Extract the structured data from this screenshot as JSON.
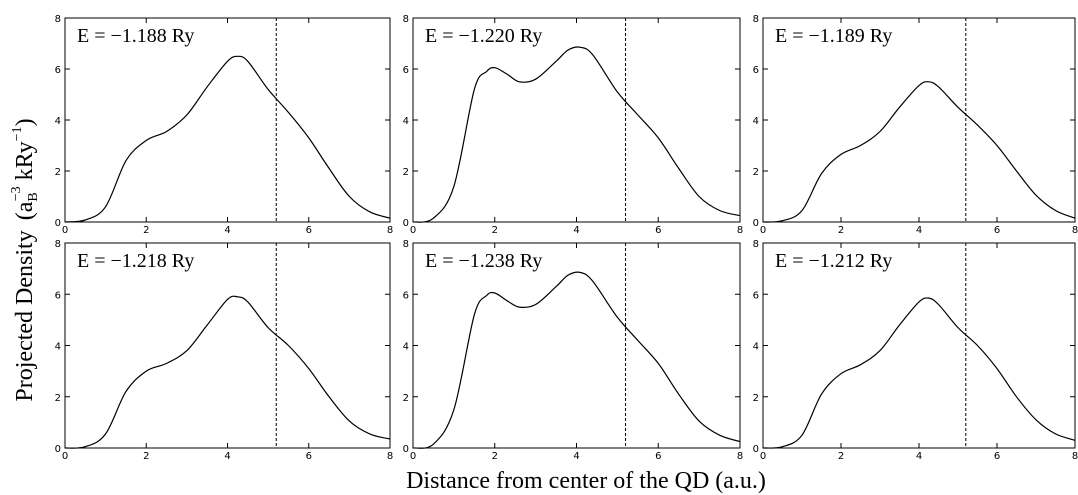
{
  "figure": {
    "ylabel_main": "Projected Density",
    "ylabel_unit": {
      "open": "(a",
      "sub": "B",
      "sup1": "−3",
      "mid": " kRy",
      "sup2": "−1",
      "close": ")"
    },
    "xlabel": "Distance from center of the QD (a.u.)"
  },
  "chart_data": [
    {
      "type": "line",
      "label": "E = −1.188 Ry",
      "xlim": [
        0,
        8
      ],
      "ylim": [
        0,
        8
      ],
      "xticks": [
        0,
        2,
        4,
        6,
        8
      ],
      "yticks": [
        0,
        2,
        4,
        6,
        8
      ],
      "vline_x": 5.2,
      "series": [
        {
          "x": [
            0,
            0.5,
            1,
            1.5,
            2,
            2.5,
            3,
            3.5,
            4,
            4.25,
            4.5,
            5,
            5.5,
            6,
            6.5,
            7,
            7.5,
            8
          ],
          "y": [
            0,
            0.08,
            0.6,
            2.4,
            3.2,
            3.55,
            4.2,
            5.3,
            6.3,
            6.5,
            6.3,
            5.2,
            4.3,
            3.3,
            2.1,
            1.0,
            0.4,
            0.15
          ]
        }
      ]
    },
    {
      "type": "line",
      "label": "E = −1.220 Ry",
      "xlim": [
        0,
        8
      ],
      "ylim": [
        0,
        8
      ],
      "xticks": [
        0,
        2,
        4,
        6,
        8
      ],
      "yticks": [
        0,
        2,
        4,
        6,
        8
      ],
      "vline_x": 5.2,
      "series": [
        {
          "x": [
            0,
            0.5,
            1,
            1.5,
            1.8,
            2,
            2.3,
            2.6,
            3,
            3.5,
            3.8,
            4.1,
            4.4,
            5,
            5.5,
            6,
            6.5,
            7,
            7.5,
            8
          ],
          "y": [
            0,
            0.15,
            1.4,
            5.2,
            5.9,
            6.05,
            5.8,
            5.5,
            5.6,
            6.3,
            6.75,
            6.85,
            6.55,
            5.1,
            4.2,
            3.3,
            2.1,
            1.0,
            0.45,
            0.25
          ]
        }
      ]
    },
    {
      "type": "line",
      "label": "E = −1.189 Ry",
      "xlim": [
        0,
        8
      ],
      "ylim": [
        0,
        8
      ],
      "xticks": [
        0,
        2,
        4,
        6,
        8
      ],
      "yticks": [
        0,
        2,
        4,
        6,
        8
      ],
      "vline_x": 5.2,
      "series": [
        {
          "x": [
            0,
            0.5,
            1,
            1.5,
            2,
            2.5,
            3,
            3.5,
            4,
            4.25,
            4.5,
            5,
            5.5,
            6,
            6.5,
            7,
            7.5,
            8
          ],
          "y": [
            0,
            0.05,
            0.45,
            1.9,
            2.65,
            3.0,
            3.55,
            4.5,
            5.35,
            5.5,
            5.3,
            4.5,
            3.8,
            3.0,
            2.0,
            1.05,
            0.45,
            0.15
          ]
        }
      ]
    },
    {
      "type": "line",
      "label": "E = −1.218 Ry",
      "xlim": [
        0,
        8
      ],
      "ylim": [
        0,
        8
      ],
      "xticks": [
        0,
        2,
        4,
        6,
        8
      ],
      "yticks": [
        0,
        2,
        4,
        6,
        8
      ],
      "vline_x": 5.2,
      "series": [
        {
          "x": [
            0,
            0.5,
            1,
            1.5,
            2,
            2.5,
            3,
            3.5,
            4,
            4.25,
            4.5,
            5,
            5.5,
            6,
            6.5,
            7,
            7.5,
            8
          ],
          "y": [
            0,
            0.05,
            0.55,
            2.2,
            3.0,
            3.3,
            3.8,
            4.8,
            5.8,
            5.9,
            5.7,
            4.7,
            4.0,
            3.1,
            2.0,
            1.05,
            0.55,
            0.35
          ]
        }
      ]
    },
    {
      "type": "line",
      "label": "E = −1.238 Ry",
      "xlim": [
        0,
        8
      ],
      "ylim": [
        0,
        8
      ],
      "xticks": [
        0,
        2,
        4,
        6,
        8
      ],
      "yticks": [
        0,
        2,
        4,
        6,
        8
      ],
      "vline_x": 5.2,
      "series": [
        {
          "x": [
            0,
            0.5,
            1,
            1.5,
            1.8,
            2,
            2.3,
            2.6,
            3,
            3.5,
            3.8,
            4.1,
            4.4,
            5,
            5.5,
            6,
            6.5,
            7,
            7.5,
            8
          ],
          "y": [
            0,
            0.15,
            1.5,
            5.2,
            5.95,
            6.05,
            5.75,
            5.5,
            5.6,
            6.3,
            6.75,
            6.85,
            6.5,
            5.1,
            4.2,
            3.3,
            2.1,
            1.05,
            0.5,
            0.25
          ]
        }
      ]
    },
    {
      "type": "line",
      "label": "E = −1.212 Ry",
      "xlim": [
        0,
        8
      ],
      "ylim": [
        0,
        8
      ],
      "xticks": [
        0,
        2,
        4,
        6,
        8
      ],
      "yticks": [
        0,
        2,
        4,
        6,
        8
      ],
      "vline_x": 5.2,
      "series": [
        {
          "x": [
            0,
            0.5,
            1,
            1.5,
            2,
            2.5,
            3,
            3.5,
            4,
            4.25,
            4.5,
            5,
            5.5,
            6,
            6.5,
            7,
            7.5,
            8
          ],
          "y": [
            0,
            0.05,
            0.5,
            2.1,
            2.9,
            3.25,
            3.8,
            4.8,
            5.7,
            5.85,
            5.6,
            4.7,
            4.0,
            3.1,
            2.0,
            1.1,
            0.55,
            0.3
          ]
        }
      ]
    }
  ]
}
